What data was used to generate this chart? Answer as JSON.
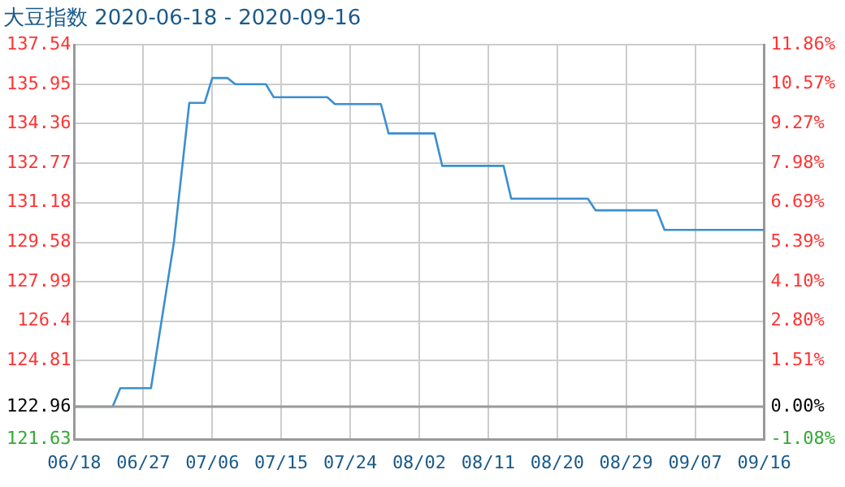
{
  "chart_data": {
    "type": "line",
    "title": "大豆指数 2020-06-18 - 2020-09-16",
    "x": [
      "2020-06-18",
      "2020-06-23",
      "2020-06-24",
      "2020-06-28",
      "2020-07-01",
      "2020-07-03",
      "2020-07-05",
      "2020-07-06",
      "2020-07-08",
      "2020-07-09",
      "2020-07-13",
      "2020-07-14",
      "2020-07-21",
      "2020-07-22",
      "2020-07-28",
      "2020-07-29",
      "2020-08-04",
      "2020-08-05",
      "2020-08-13",
      "2020-08-14",
      "2020-08-24",
      "2020-08-25",
      "2020-09-02",
      "2020-09-03",
      "2020-09-16"
    ],
    "series": [
      {
        "color": "#3a8fd0",
        "values": [
          122.96,
          122.96,
          123.7,
          123.7,
          129.6,
          135.2,
          135.2,
          136.2,
          136.2,
          135.95,
          135.95,
          135.43,
          135.43,
          135.15,
          135.15,
          133.97,
          133.97,
          132.66,
          132.66,
          131.34,
          131.34,
          130.87,
          130.87,
          130.08,
          130.08
        ]
      }
    ],
    "xlim": [
      "2020-06-18",
      "2020-09-16"
    ],
    "xticks": [
      {
        "value": "2020-06-18",
        "label": "06/18"
      },
      {
        "value": "2020-06-27",
        "label": "06/27"
      },
      {
        "value": "2020-07-06",
        "label": "07/06"
      },
      {
        "value": "2020-07-15",
        "label": "07/15"
      },
      {
        "value": "2020-07-24",
        "label": "07/24"
      },
      {
        "value": "2020-08-02",
        "label": "08/02"
      },
      {
        "value": "2020-08-11",
        "label": "08/11"
      },
      {
        "value": "2020-08-20",
        "label": "08/20"
      },
      {
        "value": "2020-08-29",
        "label": "08/29"
      },
      {
        "value": "2020-09-07",
        "label": "09/07"
      },
      {
        "value": "2020-09-16",
        "label": "09/16"
      }
    ],
    "ylim": [
      121.63,
      137.54
    ],
    "yticks": [
      121.63,
      122.96,
      124.81,
      126.4,
      127.99,
      129.58,
      131.18,
      132.77,
      134.36,
      135.95,
      137.54
    ],
    "y2lim": [
      -1.08,
      11.86
    ],
    "y2ticks": [
      {
        "value": -1.08,
        "label": "-1.08%"
      },
      {
        "value": 0,
        "label": "0.00%"
      },
      {
        "value": 1.51,
        "label": "1.51%"
      },
      {
        "value": 2.8,
        "label": "2.80%"
      },
      {
        "value": 4.1,
        "label": "4.10%"
      },
      {
        "value": 5.39,
        "label": "5.39%"
      },
      {
        "value": 6.69,
        "label": "6.69%"
      },
      {
        "value": 7.98,
        "label": "7.98%"
      },
      {
        "value": 9.27,
        "label": "9.27%"
      },
      {
        "value": 10.57,
        "label": "10.57%"
      },
      {
        "value": 11.86,
        "label": "11.86%"
      }
    ],
    "ref_lines": [
      {
        "axis": "y",
        "value": 122.96,
        "color": "#999999"
      }
    ],
    "grid": true,
    "legend": false,
    "marker": "none",
    "line_style": "solid"
  }
}
